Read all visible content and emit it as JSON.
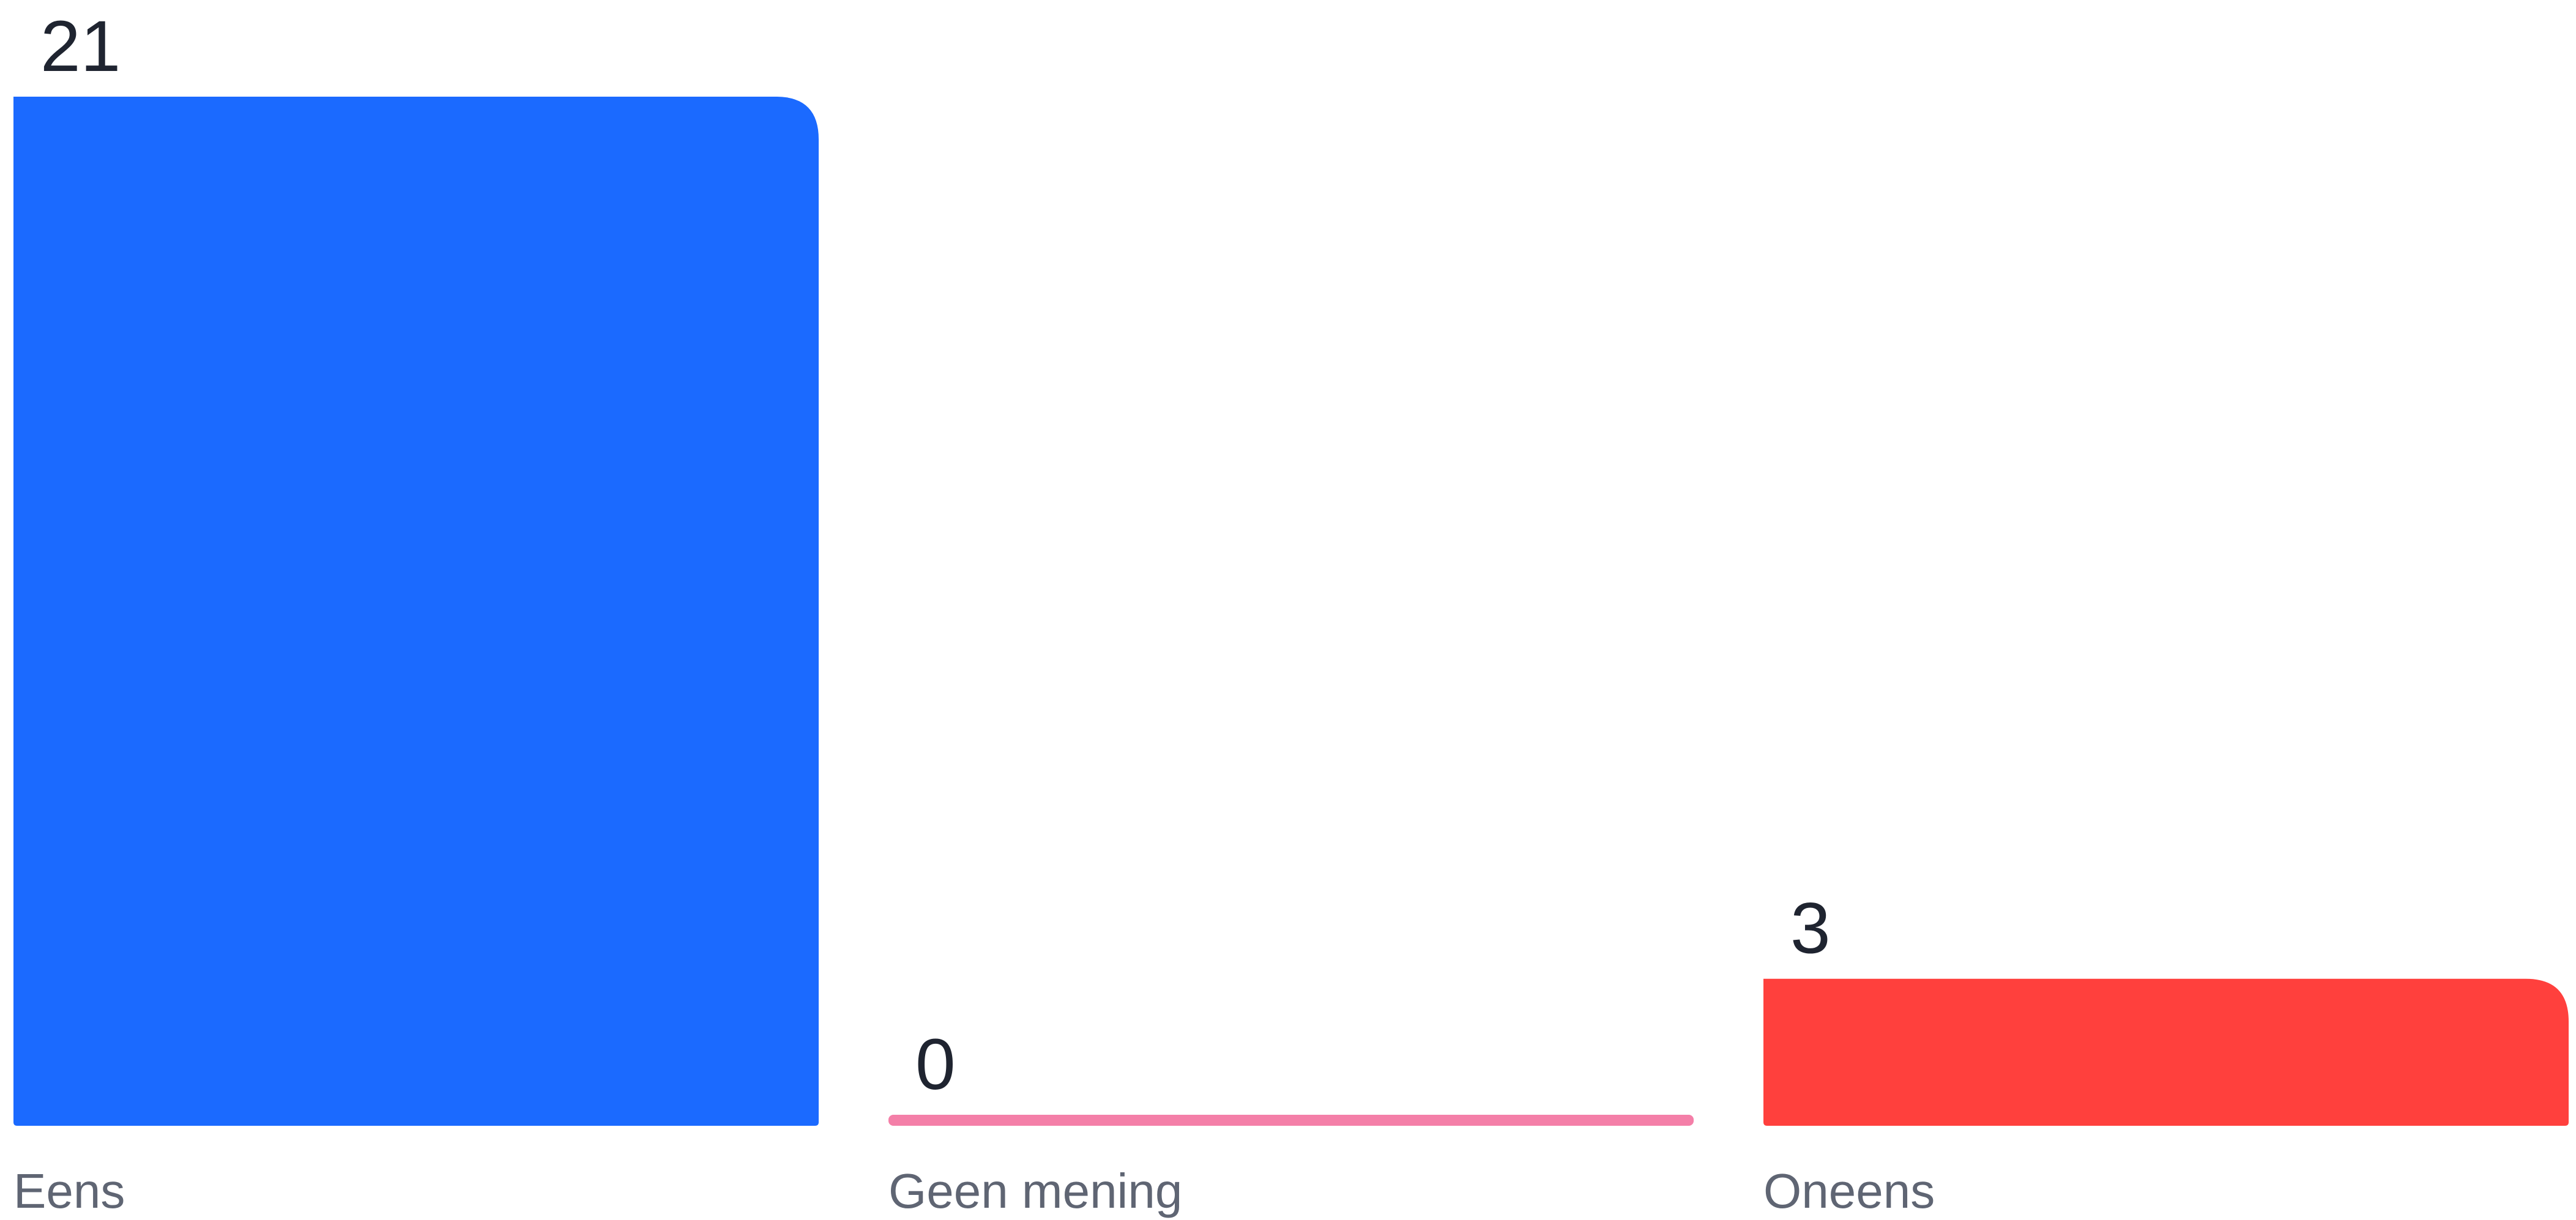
{
  "chart_data": {
    "type": "bar",
    "title": "",
    "xlabel": "",
    "ylabel": "",
    "categories": [
      "Eens",
      "Geen mening",
      "Oneens"
    ],
    "values": [
      21,
      0,
      3
    ],
    "value_labels": [
      "21",
      "0",
      "3"
    ],
    "colors": [
      "#1B6AFF",
      "#F47FA8",
      "#FF403D"
    ],
    "ylim": [
      0,
      21
    ],
    "grid": false,
    "legend": "none"
  }
}
